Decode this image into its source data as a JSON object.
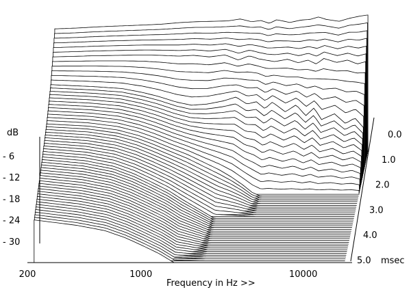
{
  "chart_data": {
    "type": "waterfall",
    "title": "",
    "xlabel": "Frequency in Hz >>",
    "ylabel": "dB",
    "zlabel": "msec",
    "x_scale": "log",
    "xlim": [
      200,
      20000
    ],
    "x_ticks": [
      {
        "value": 200,
        "label": "200"
      },
      {
        "value": 1000,
        "label": "1000"
      },
      {
        "value": 10000,
        "label": "10000"
      }
    ],
    "y_ticks": [
      {
        "value": -6,
        "label": "- 6"
      },
      {
        "value": -12,
        "label": "- 12"
      },
      {
        "value": -18,
        "label": "- 18"
      },
      {
        "value": -24,
        "label": "- 24"
      },
      {
        "value": -30,
        "label": "- 30"
      }
    ],
    "ylim": [
      -36,
      0
    ],
    "z_ticks": [
      {
        "value": 0.0,
        "label": "0.0"
      },
      {
        "value": 1.0,
        "label": "1.0"
      },
      {
        "value": 2.0,
        "label": "2.0"
      },
      {
        "value": 3.0,
        "label": "3.0"
      },
      {
        "value": 4.0,
        "label": "4.0"
      },
      {
        "value": 5.0,
        "label": "5.0"
      }
    ],
    "zlim": [
      0,
      5
    ],
    "slice_count": 60,
    "series": [
      {
        "time_ms": 0.0,
        "points": [
          [
            220,
            -5
          ],
          [
            300,
            -4.8
          ],
          [
            400,
            -4.5
          ],
          [
            600,
            -4.2
          ],
          [
            800,
            -4.0
          ],
          [
            1000,
            -3.8
          ],
          [
            1300,
            -3.4
          ],
          [
            1600,
            -3.2
          ],
          [
            2000,
            -3.1
          ],
          [
            2500,
            -3.0
          ],
          [
            3000,
            -2.5
          ],
          [
            3500,
            -3.2
          ],
          [
            4000,
            -2.9
          ],
          [
            4500,
            -3.6
          ],
          [
            5000,
            -2.7
          ],
          [
            6000,
            -3.4
          ],
          [
            7000,
            -2.8
          ],
          [
            8000,
            -2.6
          ],
          [
            9000,
            -2.0
          ],
          [
            10000,
            -2.6
          ],
          [
            12000,
            -3.1
          ],
          [
            14000,
            -2.3
          ],
          [
            16000,
            -1.8
          ],
          [
            18000,
            -1.5
          ]
        ]
      },
      {
        "time_ms": 0.5,
        "points": [
          [
            220,
            -9
          ],
          [
            400,
            -8.7
          ],
          [
            800,
            -8.5
          ],
          [
            1000,
            -8.6
          ],
          [
            1300,
            -8.8
          ],
          [
            1600,
            -8.6
          ],
          [
            2000,
            -9.0
          ],
          [
            2500,
            -8.5
          ],
          [
            3000,
            -9.8
          ],
          [
            3500,
            -8.7
          ],
          [
            4000,
            -9.5
          ],
          [
            5000,
            -10.2
          ],
          [
            6000,
            -9.6
          ],
          [
            7000,
            -10.5
          ],
          [
            8000,
            -9.8
          ],
          [
            9000,
            -10.8
          ],
          [
            10000,
            -9.4
          ],
          [
            12000,
            -10.4
          ],
          [
            14000,
            -9.8
          ],
          [
            16000,
            -10.8
          ],
          [
            18000,
            -10.2
          ]
        ]
      },
      {
        "time_ms": 1.0,
        "points": [
          [
            220,
            -13
          ],
          [
            400,
            -13.5
          ],
          [
            600,
            -14
          ],
          [
            800,
            -15
          ],
          [
            1000,
            -16
          ],
          [
            1300,
            -17.5
          ],
          [
            1600,
            -18.3
          ],
          [
            2000,
            -18
          ],
          [
            2500,
            -17.2
          ],
          [
            3000,
            -16.2
          ],
          [
            3500,
            -18
          ],
          [
            4000,
            -17.4
          ],
          [
            4500,
            -19.2
          ],
          [
            5000,
            -17.5
          ],
          [
            6000,
            -20
          ],
          [
            7000,
            -18.2
          ],
          [
            8000,
            -21
          ],
          [
            9000,
            -19
          ],
          [
            10000,
            -22
          ],
          [
            12000,
            -20.5
          ],
          [
            14000,
            -23
          ],
          [
            16000,
            -21.6
          ],
          [
            18000,
            -24
          ]
        ]
      },
      {
        "time_ms": 2.0,
        "points": [
          [
            220,
            -17
          ],
          [
            400,
            -17.6
          ],
          [
            600,
            -18.6
          ],
          [
            800,
            -20
          ],
          [
            1000,
            -21.5
          ],
          [
            1300,
            -23.5
          ],
          [
            1600,
            -25
          ],
          [
            2000,
            -27
          ],
          [
            2500,
            -29
          ],
          [
            3000,
            -31
          ],
          [
            3500,
            -33
          ],
          [
            4000,
            -35
          ],
          [
            4500,
            -36
          ],
          [
            5000,
            -36
          ]
        ]
      },
      {
        "time_ms": 3.0,
        "points": [
          [
            220,
            -19.5
          ],
          [
            400,
            -20.5
          ],
          [
            600,
            -22
          ],
          [
            800,
            -24
          ],
          [
            1000,
            -26
          ],
          [
            1300,
            -28.5
          ],
          [
            1600,
            -31
          ],
          [
            2000,
            -33.5
          ],
          [
            2500,
            -36
          ]
        ]
      },
      {
        "time_ms": 5.0,
        "points": [
          [
            220,
            -24
          ],
          [
            400,
            -25.5
          ],
          [
            600,
            -27
          ],
          [
            800,
            -29
          ],
          [
            1000,
            -31
          ],
          [
            1300,
            -33.5
          ],
          [
            1600,
            -36
          ]
        ]
      }
    ]
  }
}
